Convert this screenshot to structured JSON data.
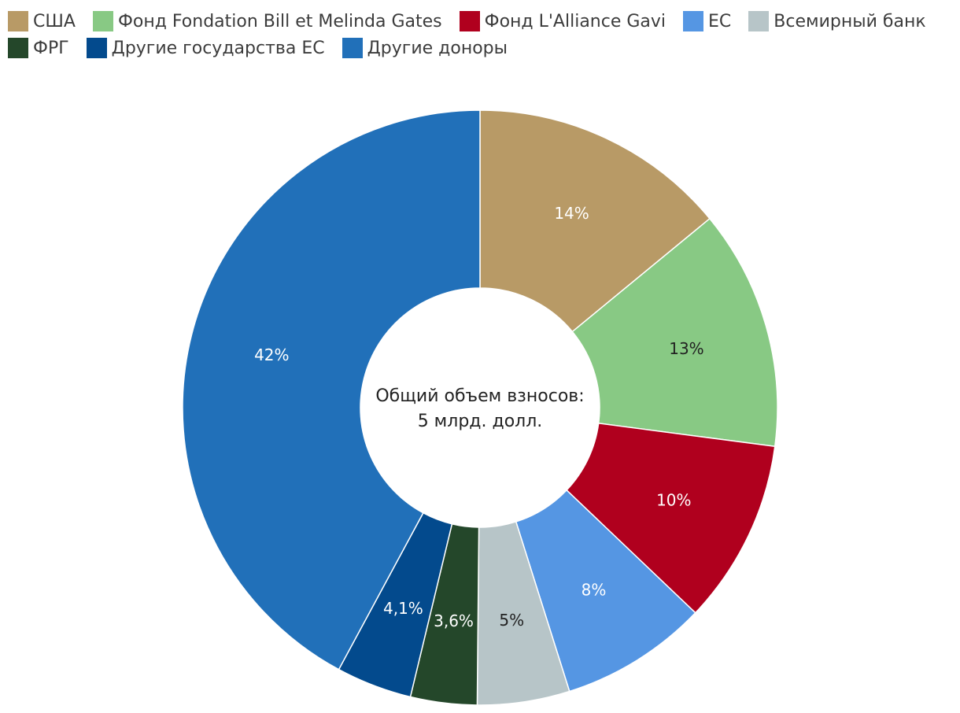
{
  "chart_data": {
    "type": "pie",
    "title": "",
    "center_label": [
      "Общий объем взносов:",
      "5 млрд. долл."
    ],
    "slices": [
      {
        "name": "США",
        "value": 14,
        "label": "14%",
        "color": "#b89a66",
        "label_color": "#ffffff"
      },
      {
        "name": "Фонд Fondation Bill et Melinda Gates",
        "value": 13,
        "label": "13%",
        "color": "#88c984",
        "label_color": "#222222"
      },
      {
        "name": "Фонд L'Alliance Gavi",
        "value": 10,
        "label": "10%",
        "color": "#b0001e",
        "label_color": "#ffffff"
      },
      {
        "name": "ЕС",
        "value": 8,
        "label": "8%",
        "color": "#5596e3",
        "label_color": "#ffffff"
      },
      {
        "name": "Всемирный банк",
        "value": 5,
        "label": "5%",
        "color": "#b7c5c8",
        "label_color": "#222222"
      },
      {
        "name": "ФРГ",
        "value": 3.6,
        "label": "3,6%",
        "color": "#24472a",
        "label_color": "#ffffff"
      },
      {
        "name": "Другие государства ЕС",
        "value": 4.1,
        "label": "4,1%",
        "color": "#034a8d",
        "label_color": "#ffffff"
      },
      {
        "name": "Другие доноры",
        "value": 42,
        "label": "42%",
        "color": "#2170b9",
        "label_color": "#ffffff"
      }
    ],
    "legend_placement": "top-left"
  },
  "legend": {
    "rows": [
      [
        0,
        1,
        2,
        3,
        4
      ],
      [
        5,
        6,
        7
      ]
    ]
  }
}
